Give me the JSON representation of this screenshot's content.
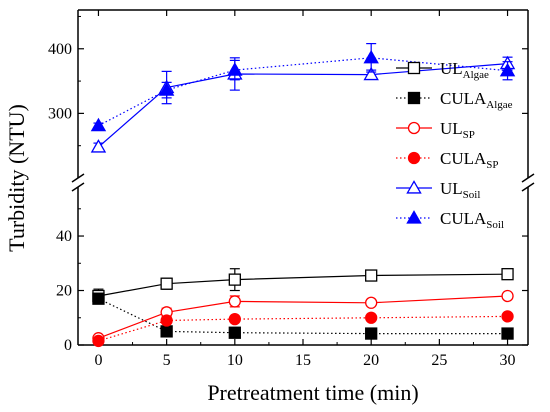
{
  "chart_data": {
    "type": "line",
    "xlabel": "Pretreatment time (min)",
    "ylabel": "Turbidity (NTU)",
    "x": [
      0,
      5,
      10,
      20,
      30
    ],
    "xticks": [
      0,
      5,
      10,
      15,
      20,
      25,
      30
    ],
    "xlim": [
      -1.5,
      31.5
    ],
    "axis_break": true,
    "upper_ylim": [
      200,
      460
    ],
    "upper_yticks": [
      300,
      400
    ],
    "lower_ylim": [
      0,
      58
    ],
    "lower_yticks": [
      0,
      20,
      40
    ],
    "legend_position": "right",
    "series": [
      {
        "name": "UL",
        "sub": "Algae",
        "color": "#000000",
        "marker": "square-open",
        "line": "solid",
        "values": [
          18,
          22.5,
          24,
          25.5,
          26
        ],
        "errors": [
          2.5,
          2,
          4,
          1.5,
          1
        ]
      },
      {
        "name": "CULA",
        "sub": "Algae",
        "color": "#000000",
        "marker": "square-filled",
        "line": "dotted",
        "values": [
          17,
          5,
          4.5,
          4.2,
          4.2
        ],
        "errors": [
          1.5,
          0,
          0,
          0,
          0
        ]
      },
      {
        "name": "UL",
        "sub": "SP",
        "color": "#ff0000",
        "marker": "circle-open",
        "line": "solid",
        "values": [
          2.5,
          12,
          16,
          15.5,
          18
        ],
        "errors": [
          0,
          1.5,
          2,
          1,
          1
        ]
      },
      {
        "name": "CULA",
        "sub": "SP",
        "color": "#ff0000",
        "marker": "circle-filled",
        "line": "dotted",
        "values": [
          1.5,
          9,
          9.5,
          10,
          10.5
        ],
        "errors": [
          0,
          0,
          0,
          0,
          0
        ]
      },
      {
        "name": "UL",
        "sub": "Soil",
        "color": "#0000ff",
        "marker": "triangle-open",
        "line": "solid",
        "values": [
          248,
          340,
          361,
          360,
          377
        ],
        "errors": [
          6,
          25,
          25,
          7,
          10
        ]
      },
      {
        "name": "CULA",
        "sub": "Soil",
        "color": "#0000ff",
        "marker": "triangle-filled",
        "line": "dotted",
        "values": [
          281,
          336,
          367,
          386,
          366
        ],
        "errors": [
          4,
          12,
          15,
          22,
          14
        ]
      }
    ]
  }
}
